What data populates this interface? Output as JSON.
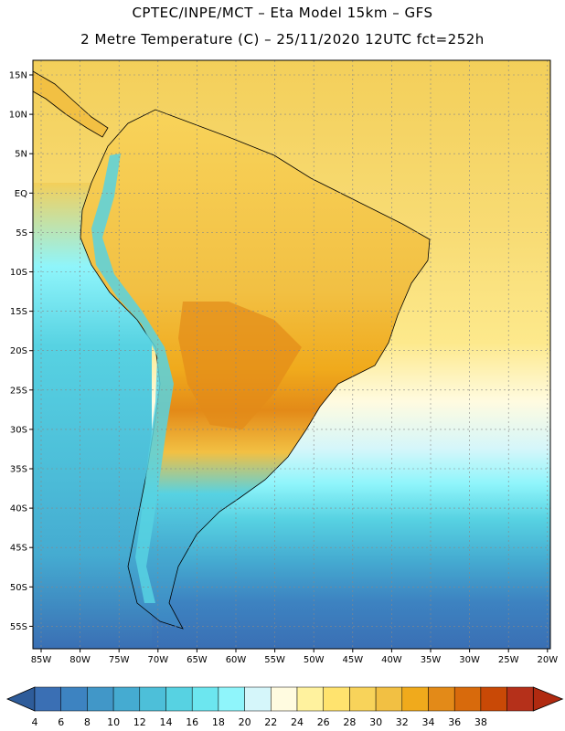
{
  "header": {
    "line1": "CPTEC/INPE/MCT –   Eta Model 15km – GFS",
    "line2": "2 Metre Temperature (C) – 25/11/2020 12UTC fct=252h"
  },
  "map": {
    "lat_labels": [
      "15N",
      "10N",
      "5N",
      "EQ",
      "5S",
      "10S",
      "15S",
      "20S",
      "25S",
      "30S",
      "35S",
      "40S",
      "45S",
      "50S",
      "55S"
    ],
    "lon_labels": [
      "85W",
      "80W",
      "75W",
      "70W",
      "65W",
      "60W",
      "55W",
      "50W",
      "45W",
      "40W",
      "35W",
      "30W",
      "25W",
      "20W"
    ],
    "lat_range": [
      15,
      -58
    ],
    "lon_range": [
      -86,
      -20
    ],
    "grid": true,
    "region": "South America"
  },
  "colorbar": {
    "values": [
      "4",
      "6",
      "8",
      "10",
      "12",
      "14",
      "16",
      "18",
      "20",
      "22",
      "24",
      "26",
      "28",
      "30",
      "32",
      "34",
      "36",
      "38"
    ],
    "colors": [
      "#3a6fb4",
      "#3d83c1",
      "#4197c8",
      "#45abd1",
      "#4dbfd9",
      "#57d2e2",
      "#6ce6ef",
      "#8ff5fb",
      "#d5f6fa",
      "#fffbe0",
      "#fff29e",
      "#ffe36e",
      "#f8d35a",
      "#f2c043",
      "#f0aa1c",
      "#e38a18",
      "#d86a0c",
      "#c94906",
      "#b5301a"
    ],
    "under_color": "#2e5c9a",
    "over_color": "#b02a10"
  }
}
